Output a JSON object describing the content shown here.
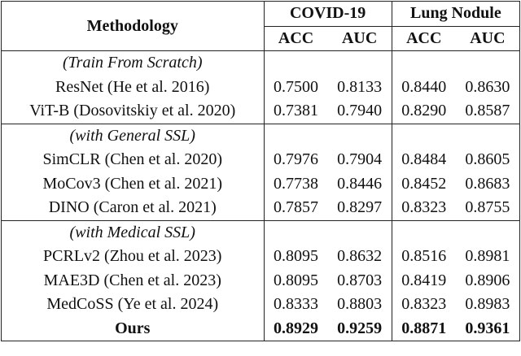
{
  "header": {
    "method": "Methodology",
    "datasets": [
      "COVID-19",
      "Lung Nodule"
    ],
    "metrics": [
      "ACC",
      "AUC",
      "ACC",
      "AUC"
    ]
  },
  "groups": [
    {
      "label": "(Train From Scratch)",
      "rows": [
        {
          "method": "ResNet (He et al. 2016)",
          "values": [
            "0.7500",
            "0.8133",
            "0.8440",
            "0.8630"
          ]
        },
        {
          "method": "ViT-B (Dosovitskiy et al. 2020)",
          "values": [
            "0.7381",
            "0.7940",
            "0.8290",
            "0.8587"
          ]
        }
      ]
    },
    {
      "label": "(with General SSL)",
      "rows": [
        {
          "method": "SimCLR (Chen et al. 2020)",
          "values": [
            "0.7976",
            "0.7904",
            "0.8484",
            "0.8605"
          ]
        },
        {
          "method": "MoCov3 (Chen et al. 2021)",
          "values": [
            "0.7738",
            "0.8446",
            "0.8452",
            "0.8683"
          ]
        },
        {
          "method": "DINO (Caron et al. 2021)",
          "values": [
            "0.7857",
            "0.8297",
            "0.8323",
            "0.8755"
          ]
        }
      ]
    },
    {
      "label": "(with Medical SSL)",
      "rows": [
        {
          "method": "PCRLv2 (Zhou et al. 2023)",
          "values": [
            "0.8095",
            "0.8632",
            "0.8516",
            "0.8981"
          ]
        },
        {
          "method": "MAE3D (Chen et al. 2023)",
          "values": [
            "0.8095",
            "0.8703",
            "0.8419",
            "0.8906"
          ]
        },
        {
          "method": "MedCoSS (Ye et al. 2024)",
          "values": [
            "0.8333",
            "0.8803",
            "0.8323",
            "0.8983"
          ]
        },
        {
          "method": "Ours",
          "values": [
            "0.8929",
            "0.9259",
            "0.8871",
            "0.9361"
          ],
          "bold": true
        }
      ]
    }
  ]
}
